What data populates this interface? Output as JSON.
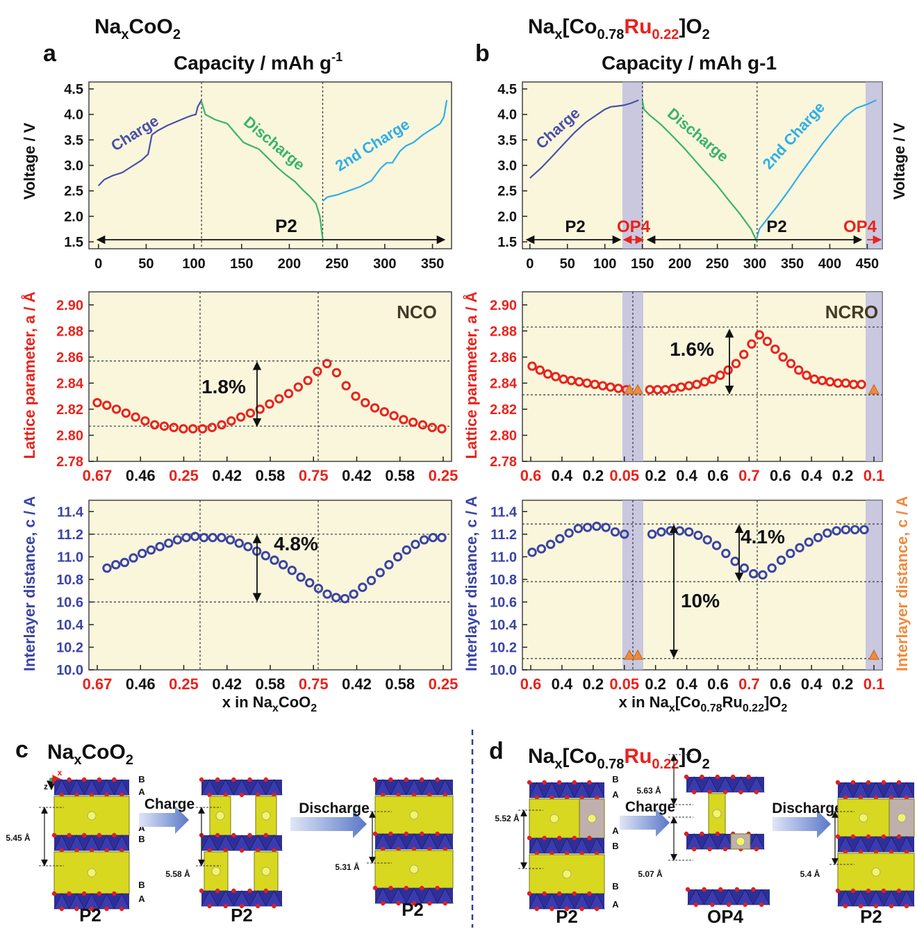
{
  "colors": {
    "panel_bg": "#f9f6dc",
    "charge": "#4a4fa8",
    "discharge": "#39b36a",
    "second_charge": "#2eaee8",
    "lattice_a": "#e8231c",
    "interlayer_c": "#3a44a3",
    "op4_marker": "#f08a3c",
    "highlight_red": "#e8231c",
    "op4_band": "#b8b8e0",
    "layer_blue": "#2f2f9a",
    "layer_yellow": "#d8d820",
    "arrow_blue": "#5a78c8"
  },
  "panel_a": {
    "letter": "a",
    "compound": {
      "base": "Na",
      "sub_x": "x",
      "mid": "CoO",
      "sub_2": "2"
    },
    "capacity_axis": {
      "label_main": "Capacity  /  mAh g",
      "label_sup": "-1"
    },
    "voltage_label": "Voltage  /  V",
    "voltage_ticks": [
      "4.5",
      "4.0",
      "3.5",
      "3.0",
      "2.5",
      "2.0",
      "1.5"
    ],
    "capacity_ticks": [
      "0",
      "50",
      "100",
      "150",
      "200",
      "250",
      "300",
      "350"
    ],
    "curve_labels": {
      "charge": "Charge",
      "discharge": "Discharge",
      "second_charge": "2nd Charge"
    },
    "phase_label": "P2",
    "lattice_label": "Lattice parameter, a / Å",
    "lattice_ticks": [
      "2.90",
      "2.88",
      "2.86",
      "2.84",
      "2.82",
      "2.80",
      "2.78"
    ],
    "lattice_tag": "NCO",
    "lattice_change": "1.8%",
    "x_ticks": [
      "0.67",
      "0.46",
      "0.25",
      "0.42",
      "0.58",
      "0.75",
      "0.42",
      "0.58",
      "0.25"
    ],
    "interlayer_label": "Interlayer distance, c / A",
    "interlayer_ticks": [
      "11.4",
      "11.2",
      "11.0",
      "10.8",
      "10.6",
      "10.4",
      "10.2",
      "10.0"
    ],
    "interlayer_change": "4.8%",
    "xlabel": {
      "pre": "x in Na",
      "sub": "x",
      "post": "CoO",
      "sub2": "2"
    }
  },
  "panel_b": {
    "letter": "b",
    "compound": {
      "base": "Na",
      "sub_x": "x",
      "open": "[Co",
      "co_sub": "0.78",
      "ru": "Ru",
      "ru_sub": "0.22",
      "close": "]O",
      "sub_2": "2"
    },
    "capacity_axis": {
      "label": "Capacity  /  mAh g-1"
    },
    "voltage_label": "Voltage  / V",
    "voltage_ticks": [
      "4.5",
      "4.0",
      "3.5",
      "3.0",
      "2.5",
      "2.0",
      "1.5"
    ],
    "capacity_ticks": [
      "0",
      "50",
      "100",
      "150",
      "200",
      "250",
      "300",
      "350",
      "400",
      "450"
    ],
    "curve_labels": {
      "charge": "Charge",
      "discharge": "Discharge",
      "second_charge": "2nd Charge"
    },
    "phase_labels": [
      "P2",
      "OP4",
      "P2",
      "OP4"
    ],
    "lattice_label": "Lattice parameter, a / Å",
    "lattice_ticks": [
      "2.90",
      "2.88",
      "2.86",
      "2.84",
      "2.82",
      "2.80",
      "2.78"
    ],
    "lattice_tag": "NCRO",
    "lattice_change": "1.6%",
    "x_ticks": [
      "0.6",
      "0.4",
      "0.2",
      "0.05",
      "0.2",
      "0.4",
      "0.6",
      "0.7",
      "0.6",
      "0.4",
      "0.2",
      "0.1"
    ],
    "x_ticks_red": [
      0,
      3,
      7,
      11
    ],
    "interlayer_label": "Interlayer distance, c / A",
    "interlayer_right_label": "Interlayer distance, c / A",
    "interlayer_ticks": [
      "11.4",
      "11.2",
      "11.0",
      "10.8",
      "10.6",
      "10.4",
      "10.2",
      "10.0"
    ],
    "interlayer_change": "4.1%",
    "interlayer_change_2": "10%",
    "xlabel": {
      "pre": "x in Na",
      "sub": "x",
      "mid": "[Co",
      "co": "0.78",
      "ru": "Ru",
      "ru_sub": "0.22",
      "close": "]O",
      "sub2": "2"
    }
  },
  "panel_c": {
    "letter": "c",
    "compound": {
      "base": "Na",
      "sub_x": "x",
      "mid": "CoO",
      "sub_2": "2"
    },
    "axis_z": "z",
    "axis_x": "x",
    "stacking_left": [
      "B",
      "A",
      "A",
      "B",
      "B",
      "A"
    ],
    "arrow_charge": "Charge",
    "arrow_discharge": "Discharge",
    "distances": [
      "5.45 Å",
      "5.58 Å",
      "5.31 Å"
    ],
    "phases": [
      "P2",
      "P2",
      "P2"
    ]
  },
  "panel_d": {
    "letter": "d",
    "compound": {
      "base": "Na",
      "sub_x": "x",
      "open": "[Co",
      "co_sub": "0.78",
      "ru": "Ru",
      "ru_sub": "0.22",
      "close": "]O",
      "sub_2": "2"
    },
    "stacking_left": [
      "B",
      "A",
      "A",
      "B",
      "B",
      "A"
    ],
    "arrow_charge": "Charge",
    "arrow_discharge": "Discharge",
    "distances": [
      "5.52 Å",
      "5.63 Å",
      "5.07 Å",
      "5.4 Å"
    ],
    "phases": [
      "P2",
      "OP4",
      "P2"
    ]
  },
  "chart_data": [
    {
      "type": "line",
      "panel": "a-top",
      "xlabel": "Capacity / mAh g-1",
      "ylabel": "Voltage / V",
      "xlim": [
        -10,
        370
      ],
      "ylim": [
        1.5,
        4.5
      ],
      "series": [
        {
          "name": "Charge",
          "x": [
            0,
            6,
            15,
            25,
            35,
            45,
            52,
            56,
            62,
            72,
            82,
            92,
            98,
            102,
            104,
            108
          ],
          "y": [
            2.6,
            2.72,
            2.8,
            2.86,
            2.98,
            3.1,
            3.22,
            3.6,
            3.68,
            3.78,
            3.86,
            3.94,
            3.98,
            4.0,
            4.15,
            4.28
          ]
        },
        {
          "name": "Discharge",
          "x": [
            108,
            112,
            122,
            135,
            145,
            152,
            158,
            168,
            180,
            188,
            196,
            206,
            214,
            222,
            228,
            232,
            235
          ],
          "y": [
            4.25,
            4.0,
            3.9,
            3.82,
            3.6,
            3.45,
            3.4,
            3.32,
            3.1,
            2.95,
            2.82,
            2.68,
            2.52,
            2.38,
            2.25,
            2.0,
            1.55
          ]
        },
        {
          "name": "2nd Charge",
          "x": [
            235,
            240,
            250,
            262,
            274,
            286,
            296,
            302,
            308,
            316,
            322,
            330,
            340,
            350,
            358,
            362,
            365
          ],
          "y": [
            2.3,
            2.38,
            2.42,
            2.5,
            2.58,
            2.7,
            2.95,
            3.05,
            3.05,
            3.28,
            3.38,
            3.45,
            3.6,
            3.72,
            3.82,
            3.95,
            4.28
          ]
        }
      ],
      "vlines": [
        108,
        235
      ],
      "annotations": [
        "P2"
      ]
    },
    {
      "type": "line",
      "panel": "b-top",
      "xlabel": "Capacity / mAh g-1",
      "ylabel": "Voltage / V",
      "xlim": [
        -10,
        470
      ],
      "ylim": [
        1.5,
        4.5
      ],
      "series": [
        {
          "name": "Charge",
          "x": [
            0,
            15,
            30,
            45,
            60,
            75,
            90,
            100,
            108,
            115,
            125,
            135,
            145
          ],
          "y": [
            2.75,
            2.95,
            3.18,
            3.42,
            3.65,
            3.85,
            4.0,
            4.1,
            4.15,
            4.16,
            4.18,
            4.22,
            4.28
          ]
        },
        {
          "name": "Discharge",
          "x": [
            150,
            152,
            160,
            175,
            190,
            205,
            220,
            235,
            250,
            265,
            280,
            295,
            303
          ],
          "y": [
            4.28,
            4.1,
            3.98,
            3.8,
            3.58,
            3.35,
            3.1,
            2.85,
            2.6,
            2.32,
            2.05,
            1.75,
            1.5
          ]
        },
        {
          "name": "2nd Charge",
          "x": [
            303,
            306,
            315,
            330,
            345,
            360,
            375,
            390,
            405,
            420,
            435,
            450,
            462
          ],
          "y": [
            1.6,
            1.75,
            1.92,
            2.2,
            2.5,
            2.82,
            3.12,
            3.42,
            3.7,
            3.95,
            4.12,
            4.2,
            4.28
          ]
        }
      ],
      "vlines": [
        150,
        303
      ],
      "annotations": [
        "P2",
        "OP4",
        "P2",
        "OP4"
      ]
    },
    {
      "type": "scatter",
      "panel": "a-middle",
      "ylabel": "Lattice parameter, a / Å",
      "ylim": [
        2.78,
        2.91
      ],
      "x_tick_labels": [
        "0.67",
        "0.46",
        "0.25",
        "0.42",
        "0.58",
        "0.75",
        "0.42",
        "0.58",
        "0.25"
      ],
      "series": [
        {
          "name": "a",
          "values": [
            2.825,
            2.823,
            2.82,
            2.817,
            2.814,
            2.811,
            2.808,
            2.807,
            2.806,
            2.805,
            2.805,
            2.805,
            2.806,
            2.808,
            2.811,
            2.814,
            2.817,
            2.82,
            2.824,
            2.828,
            2.832,
            2.837,
            2.842,
            2.849,
            2.855,
            2.848,
            2.838,
            2.83,
            2.825,
            2.821,
            2.818,
            2.815,
            2.812,
            2.81,
            2.808,
            2.806,
            2.805
          ]
        }
      ],
      "hlines": [
        2.857,
        2.807
      ],
      "annotations": [
        "NCO",
        "1.8%"
      ]
    },
    {
      "type": "scatter",
      "panel": "b-middle",
      "ylabel": "Lattice parameter, a / Å",
      "ylim": [
        2.78,
        2.91
      ],
      "x_tick_labels": [
        "0.6",
        "0.4",
        "0.2",
        "0.05",
        "0.2",
        "0.4",
        "0.6",
        "0.7",
        "0.6",
        "0.4",
        "0.2",
        "0.1"
      ],
      "series": [
        {
          "name": "a",
          "values": [
            2.853,
            2.85,
            2.847,
            2.845,
            2.843,
            2.842,
            2.841,
            2.84,
            2.839,
            2.838,
            2.837,
            2.836,
            2.835,
            null,
            null,
            2.835,
            2.835,
            2.835,
            2.836,
            2.837,
            2.838,
            2.839,
            2.841,
            2.843,
            2.846,
            2.85,
            2.855,
            2.862,
            2.87,
            2.877,
            2.872,
            2.866,
            2.86,
            2.855,
            2.85,
            2.846,
            2.843,
            2.842,
            2.841,
            2.84,
            2.84,
            2.839,
            2.839
          ]
        },
        {
          "name": "OP4",
          "values": [
            2.835,
            2.835,
            2.835
          ]
        }
      ],
      "hlines": [
        2.883,
        2.831
      ],
      "annotations": [
        "NCRO",
        "1.6%"
      ]
    },
    {
      "type": "scatter",
      "panel": "a-bottom",
      "ylabel": "Interlayer distance, c / A",
      "ylim": [
        10.0,
        11.5
      ],
      "x_tick_labels": [
        "0.67",
        "0.46",
        "0.25",
        "0.42",
        "0.58",
        "0.75",
        "0.42",
        "0.58",
        "0.25"
      ],
      "series": [
        {
          "name": "c",
          "values": [
            10.9,
            10.93,
            10.95,
            10.99,
            11.03,
            11.06,
            11.09,
            11.12,
            11.15,
            11.17,
            11.18,
            11.17,
            11.17,
            11.17,
            11.15,
            11.12,
            11.09,
            11.05,
            11.01,
            10.97,
            10.93,
            10.88,
            10.82,
            10.77,
            10.72,
            10.67,
            10.64,
            10.63,
            10.67,
            10.73,
            10.79,
            10.86,
            10.93,
            11.0,
            11.06,
            11.11,
            11.15,
            11.17,
            11.17
          ]
        }
      ],
      "hlines": [
        11.2,
        10.6
      ],
      "annotations": [
        "4.8%"
      ]
    },
    {
      "type": "scatter",
      "panel": "b-bottom",
      "ylabel": "Interlayer distance, c / A",
      "ylim": [
        10.0,
        11.5
      ],
      "x_tick_labels": [
        "0.6",
        "0.4",
        "0.2",
        "0.05",
        "0.2",
        "0.4",
        "0.6",
        "0.7",
        "0.6",
        "0.4",
        "0.2",
        "0.1"
      ],
      "series": [
        {
          "name": "c",
          "values": [
            11.04,
            11.07,
            11.11,
            11.16,
            11.21,
            11.25,
            11.26,
            11.27,
            11.26,
            11.22,
            11.2,
            null,
            null,
            11.2,
            11.22,
            11.23,
            11.23,
            11.22,
            11.19,
            11.15,
            11.1,
            11.03,
            10.96,
            10.9,
            10.85,
            10.84,
            10.9,
            10.97,
            11.03,
            11.08,
            11.13,
            11.17,
            11.21,
            11.23,
            11.24,
            11.24,
            11.24
          ]
        },
        {
          "name": "OP4",
          "values": [
            10.13,
            10.13,
            10.13
          ]
        }
      ],
      "hlines": [
        11.29,
        10.78,
        10.1
      ],
      "annotations": [
        "4.1%",
        "10%"
      ]
    }
  ]
}
